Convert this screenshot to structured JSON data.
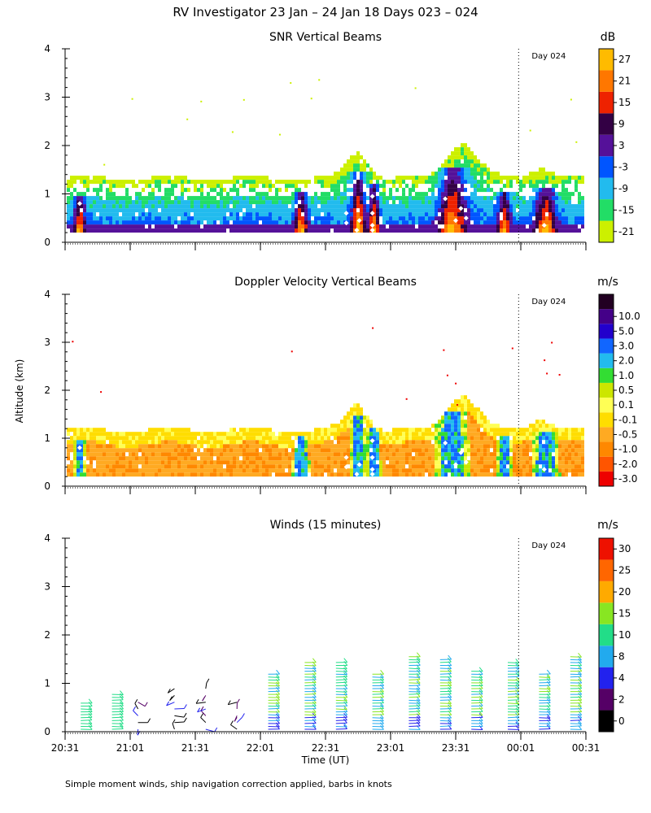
{
  "title": "RV Investigator  23 Jan – 24 Jan 18 Days 023 – 024",
  "ylabel": "Altitude (km)",
  "xlabel": "Time (UT)",
  "footnote": "Simple moment winds, ship navigation correction applied, barbs in knots",
  "day_marker": {
    "label": "Day 024",
    "time": "00:00"
  },
  "colors": {
    "snr": [
      "#ccf000",
      "#22dd66",
      "#22bbee",
      "#0055ff",
      "#551199",
      "#330044",
      "#ee2200",
      "#ff7700",
      "#ffbb00"
    ],
    "doppler": [
      "#ee0000",
      "#ff5500",
      "#ff8800",
      "#ffaa22",
      "#ffdd00",
      "#ffff55",
      "#cce600",
      "#33dd33",
      "#22bbee",
      "#1166ff",
      "#2200cc",
      "#440088",
      "#220022"
    ],
    "winds": [
      "#000000",
      "#550066",
      "#2222ee",
      "#22aaee",
      "#22dd88",
      "#88e622",
      "#ffaa00",
      "#ff6600",
      "#ee1100"
    ]
  },
  "chart_data": [
    {
      "type": "heatmap",
      "title": "SNR Vertical Beams",
      "unit": "dB",
      "x_ticks": [
        "20:31",
        "21:01",
        "21:31",
        "22:01",
        "22:31",
        "23:01",
        "23:31",
        "00:01",
        "00:31"
      ],
      "y_ticks": [
        "0",
        "1",
        "2",
        "3",
        "4"
      ],
      "ylim": [
        0,
        4
      ],
      "colorbar": [
        "-21",
        "-15",
        "-9",
        "-3",
        "3",
        "9",
        "15",
        "21",
        "27"
      ]
    },
    {
      "type": "heatmap",
      "title": "Doppler Velocity Vertical Beams",
      "unit": "m/s",
      "x_ticks": [
        "20:31",
        "21:01",
        "21:31",
        "22:01",
        "22:31",
        "23:01",
        "23:31",
        "00:01",
        "00:31"
      ],
      "y_ticks": [
        "0",
        "1",
        "2",
        "3",
        "4"
      ],
      "ylim": [
        0,
        4
      ],
      "colorbar": [
        "-3.0",
        "-2.0",
        "-1.0",
        "-0.5",
        "-0.1",
        "0.1",
        "0.5",
        "1.0",
        "2.0",
        "3.0",
        "5.0",
        "10.0"
      ]
    },
    {
      "type": "scatter",
      "title": "Winds (15 minutes)",
      "unit": "m/s",
      "x_ticks": [
        "20:31",
        "21:01",
        "21:31",
        "22:01",
        "22:31",
        "23:01",
        "23:31",
        "00:01",
        "00:31"
      ],
      "y_ticks": [
        "0",
        "1",
        "2",
        "3",
        "4"
      ],
      "ylim": [
        0,
        4
      ],
      "colorbar": [
        "0",
        "2",
        "4",
        "8",
        "10",
        "15",
        "20",
        "25",
        "30"
      ]
    }
  ]
}
